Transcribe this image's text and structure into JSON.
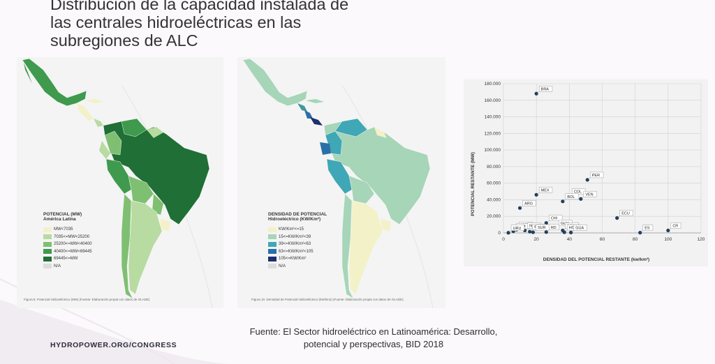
{
  "slide": {
    "title_lines": [
      "Distribución de la capacidad instalada de",
      "las centrales hidroeléctricas en las",
      "subregiones de ALC"
    ],
    "source_line1": "Fuente: El Sector hidroeléctrico en Latinoamérica: Desarrollo,",
    "source_line2": "potencial y perspectivas, BID 2018",
    "footer": "HYDROPOWER.ORG/CONGRESS"
  },
  "map1": {
    "legend_title": "POTENCIAL (MW)",
    "legend_subtitle": "América Latina",
    "legend": [
      {
        "label": "MW<7035",
        "color": "#f2f1c8"
      },
      {
        "label": "7035<=MW<25200",
        "color": "#b7dba0"
      },
      {
        "label": "25200<=MW<40400",
        "color": "#7fbf72"
      },
      {
        "label": "40400<=MW<69445",
        "color": "#3f9a4d"
      },
      {
        "label": "69445<=MW",
        "color": "#1f6f36"
      },
      {
        "label": "N/A",
        "color": "#dcdcdc"
      }
    ],
    "caption": "Figura 8. Potencial Hidroeléctrico (MW) (Fuente: Elaboración propia con datos de OLADE)"
  },
  "map2": {
    "legend_title": "DENSIDAD DE POTENCIAL",
    "legend_subtitle": "Hidroeléctrico (KW/Km²)",
    "legend": [
      {
        "label": "KW/Km²<=15",
        "color": "#f3f1c8"
      },
      {
        "label": "15<=KW/Km²<39",
        "color": "#a6d5b8"
      },
      {
        "label": "39<=KW/Km²<63",
        "color": "#3fa7b6"
      },
      {
        "label": "63<=KW/Km²<105",
        "color": "#2a6fa8"
      },
      {
        "label": "105<=KW/Km²",
        "color": "#1d2f6f"
      },
      {
        "label": "N/A",
        "color": "#dcdcdc"
      }
    ],
    "caption": "Figura 10. Densidad de Potencial Hidroeléctrico (kW/km2) (Fuente: Elaboración propia con datos de OLADE)"
  },
  "chart_data": {
    "type": "scatter",
    "xlabel": "DENSIDAD DEL POTENCIAL RESTANTE (kw/km²)",
    "ylabel": "POTENCIAL RESTANTE (MW)",
    "xlim": [
      0,
      120
    ],
    "ylim": [
      0,
      180000
    ],
    "xticks": [
      "0",
      "20",
      "40",
      "60",
      "80",
      "100",
      "120"
    ],
    "yticks": [
      "0",
      "20.000",
      "40.000",
      "60.000",
      "80.000",
      "100.000",
      "120.000",
      "140.000",
      "160.000",
      "180.000"
    ],
    "grid": true,
    "point_color": "#1f3a5a",
    "points": [
      {
        "label": "BRA",
        "x": 20,
        "y": 168000
      },
      {
        "label": "PER",
        "x": 51,
        "y": 64000
      },
      {
        "label": "MEX",
        "x": 20,
        "y": 46000
      },
      {
        "label": "COL",
        "x": 40,
        "y": 44000
      },
      {
        "label": "VEN",
        "x": 47,
        "y": 41000
      },
      {
        "label": "BOL",
        "x": 36,
        "y": 38000
      },
      {
        "label": "ARG",
        "x": 10,
        "y": 30000
      },
      {
        "label": "ECU",
        "x": 69,
        "y": 18000
      },
      {
        "label": "HAI",
        "x": 8,
        "y": 4000
      },
      {
        "label": "JAM",
        "x": 6,
        "y": 2000
      },
      {
        "label": "NIC",
        "x": 13,
        "y": 3000
      },
      {
        "label": "CHI",
        "x": 26,
        "y": 12000
      },
      {
        "label": "GUY",
        "x": 32,
        "y": 6000
      },
      {
        "label": "BEL",
        "x": 36,
        "y": 3000
      },
      {
        "label": "PAN",
        "x": 16,
        "y": 1500
      },
      {
        "label": "SUR",
        "x": 18,
        "y": 800
      },
      {
        "label": "RD",
        "x": 26,
        "y": 1000
      },
      {
        "label": "HON",
        "x": 37,
        "y": 800
      },
      {
        "label": "GUA",
        "x": 41,
        "y": 500
      },
      {
        "label": "URU",
        "x": 3,
        "y": 200
      },
      {
        "label": "ES",
        "x": 83,
        "y": 300
      },
      {
        "label": "CR",
        "x": 100,
        "y": 3000
      }
    ]
  }
}
